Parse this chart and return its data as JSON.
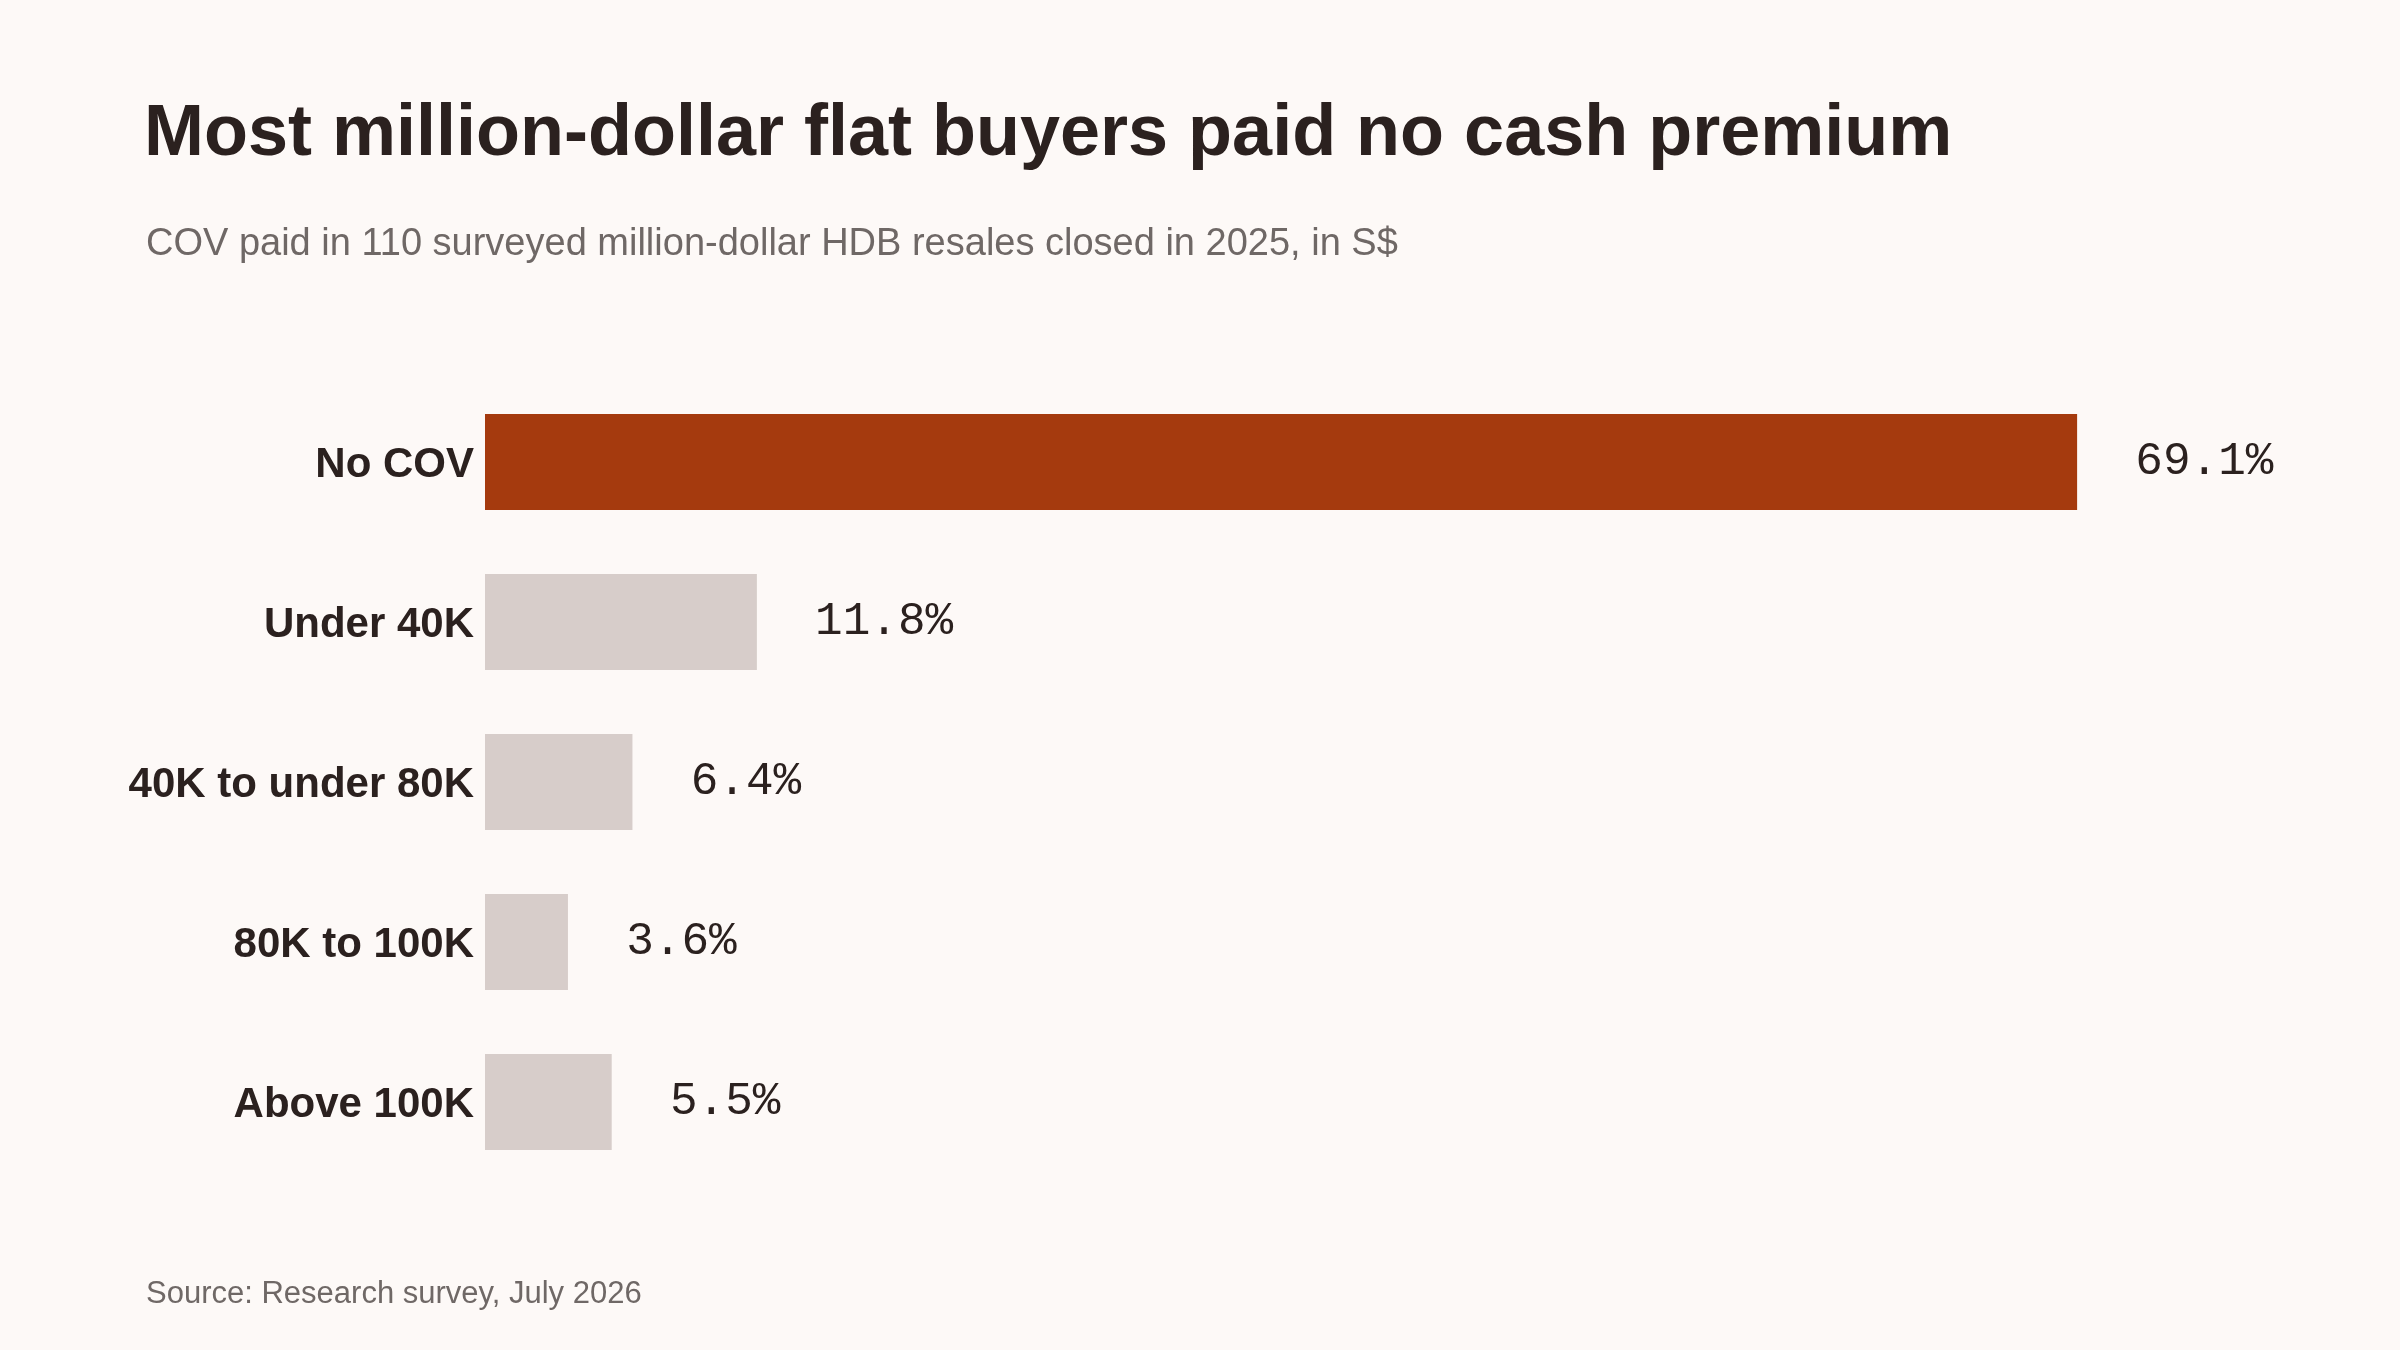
{
  "chart_data": {
    "type": "bar",
    "orientation": "horizontal",
    "title": "Most million-dollar flat buyers paid no cash premium",
    "subtitle": "COV paid in 110 surveyed million-dollar HDB resales closed in 2025, in S$",
    "categories": [
      "No COV",
      "Under 40K",
      "40K to under 80K",
      "80K to 100K",
      "Above 100K"
    ],
    "values": [
      69.1,
      11.8,
      6.4,
      3.6,
      5.5
    ],
    "value_labels": [
      "69.1%",
      "11.8%",
      "6.4%",
      "3.6%",
      "5.5%"
    ],
    "colors": [
      "#a53a0e",
      "#d7cdca",
      "#d7cdca",
      "#d7cdca",
      "#d7cdca"
    ],
    "annotations": [
      "Source: Research survey, July 2026"
    ]
  }
}
